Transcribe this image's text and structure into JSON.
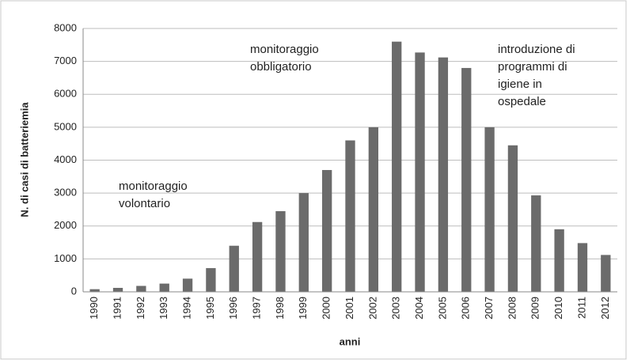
{
  "chart_data": {
    "type": "bar",
    "x_label": "anni",
    "y_label": "N. di casi di batteriemia",
    "annotations": [
      [
        "monitoraggio",
        "volontario"
      ],
      [
        "monitoraggio",
        "obbligatorio"
      ],
      [
        "introduzione di",
        "programmi di",
        "igiene in",
        "ospedale"
      ]
    ],
    "categories": [
      "1990",
      "1991",
      "1992",
      "1993",
      "1994",
      "1995",
      "1996",
      "1997",
      "1998",
      "1999",
      "2000",
      "2001",
      "2002",
      "2003",
      "2004",
      "2005",
      "2006",
      "2007",
      "2008",
      "2009",
      "2010",
      "2011",
      "2012"
    ],
    "values": [
      80,
      120,
      180,
      250,
      400,
      720,
      1400,
      2120,
      2450,
      3000,
      3700,
      4600,
      5000,
      7600,
      7270,
      7120,
      6800,
      5000,
      4450,
      2930,
      1900,
      1480,
      1120
    ],
    "color": "#6b6b6b",
    "ylim": [
      0,
      8000
    ],
    "yticks": [
      0,
      1000,
      2000,
      3000,
      4000,
      5000,
      6000,
      7000,
      8000
    ],
    "grid": true
  }
}
